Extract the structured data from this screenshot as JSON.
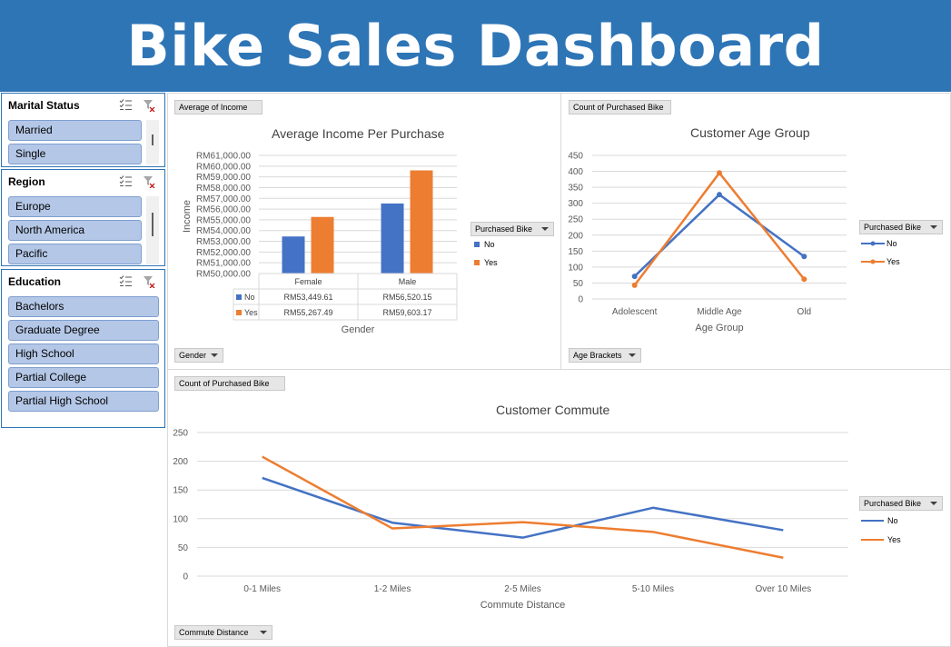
{
  "banner": {
    "title": "Bike Sales Dashboard"
  },
  "slicers": {
    "marital_status": {
      "title": "Marital Status",
      "items": [
        "Married",
        "Single"
      ]
    },
    "region": {
      "title": "Region",
      "items": [
        "Europe",
        "North America",
        "Pacific"
      ]
    },
    "education": {
      "title": "Education",
      "items": [
        "Bachelors",
        "Graduate Degree",
        "High School",
        "Partial College",
        "Partial High School"
      ]
    }
  },
  "colors": {
    "banner": "#2e75b6",
    "no": "#4472c4",
    "yes": "#ed7d31",
    "slicer_item": "#b4c7e7"
  },
  "income_chart": {
    "value_button": "Average of Income",
    "axis_button": "Gender",
    "legend_button": "Purchased Bike",
    "legend": [
      "No",
      "Yes"
    ],
    "table_rows": [
      {
        "label": "No",
        "cells": [
          "RM53,449.61",
          "RM56,520.15"
        ]
      },
      {
        "label": "Yes",
        "cells": [
          "RM55,267.49",
          "RM59,603.17"
        ]
      }
    ],
    "y_tick_labels": [
      "RM61,000.00",
      "RM60,000.00",
      "RM59,000.00",
      "RM58,000.00",
      "RM57,000.00",
      "RM56,000.00",
      "RM55,000.00",
      "RM54,000.00",
      "RM53,000.00",
      "RM52,000.00",
      "RM51,000.00",
      "RM50,000.00"
    ]
  },
  "age_chart": {
    "value_button": "Count of Purchased Bike",
    "axis_button": "Age Brackets",
    "legend_button": "Purchased Bike"
  },
  "commute_chart": {
    "value_button": "Count of Purchased Bike",
    "axis_button": "Commute Distance",
    "legend_button": "Purchased Bike"
  },
  "chart_data": [
    {
      "type": "bar",
      "title": "Average Income Per Purchase",
      "xlabel": "Gender",
      "ylabel": "Income",
      "categories": [
        "Female",
        "Male"
      ],
      "series": [
        {
          "name": "No",
          "values": [
            53449.61,
            56520.15
          ]
        },
        {
          "name": "Yes",
          "values": [
            55267.49,
            59603.17
          ]
        }
      ],
      "ylim": [
        50000,
        61000
      ]
    },
    {
      "type": "line",
      "title": "Customer Age Group",
      "xlabel": "Age Group",
      "ylabel": "",
      "categories": [
        "Adolescent",
        "Middle Age",
        "Old"
      ],
      "series": [
        {
          "name": "No",
          "values": [
            71,
            327,
            133
          ]
        },
        {
          "name": "Yes",
          "values": [
            43,
            395,
            62
          ]
        }
      ],
      "ylim": [
        0,
        450
      ],
      "yticks": [
        0,
        50,
        100,
        150,
        200,
        250,
        300,
        350,
        400,
        450
      ]
    },
    {
      "type": "line",
      "title": "Customer Commute",
      "xlabel": "Commute Distance",
      "ylabel": "",
      "categories": [
        "0-1 Miles",
        "1-2 Miles",
        "2-5 Miles",
        "5-10 Miles",
        "Over 10 Miles"
      ],
      "series": [
        {
          "name": "No",
          "values": [
            171,
            93,
            67,
            119,
            80
          ]
        },
        {
          "name": "Yes",
          "values": [
            208,
            83,
            94,
            77,
            32
          ]
        }
      ],
      "ylim": [
        0,
        250
      ],
      "yticks": [
        0,
        50,
        100,
        150,
        200,
        250
      ]
    }
  ]
}
